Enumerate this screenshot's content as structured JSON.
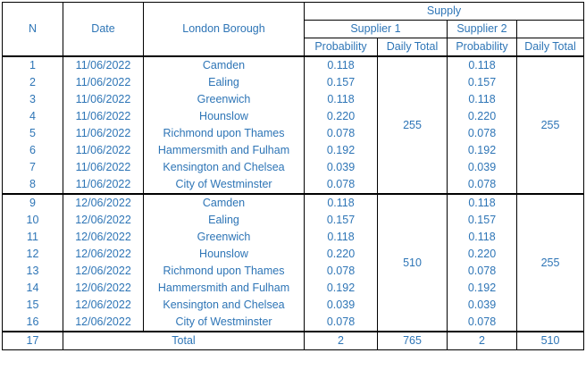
{
  "headers": {
    "n": "N",
    "date": "Date",
    "borough": "London Borough",
    "supply": "Supply",
    "supplier1": "Supplier 1",
    "supplier2": "Supplier 2",
    "probability": "Probability",
    "daily_total": "Daily Total"
  },
  "rows": [
    {
      "n": "1",
      "date": "11/06/2022",
      "borough": "Camden",
      "p1": "0.118",
      "p2": "0.118"
    },
    {
      "n": "2",
      "date": "11/06/2022",
      "borough": "Ealing",
      "p1": "0.157",
      "p2": "0.157"
    },
    {
      "n": "3",
      "date": "11/06/2022",
      "borough": "Greenwich",
      "p1": "0.118",
      "p2": "0.118"
    },
    {
      "n": "4",
      "date": "11/06/2022",
      "borough": "Hounslow",
      "p1": "0.220",
      "p2": "0.220"
    },
    {
      "n": "5",
      "date": "11/06/2022",
      "borough": "Richmond upon Thames",
      "p1": "0.078",
      "p2": "0.078"
    },
    {
      "n": "6",
      "date": "11/06/2022",
      "borough": "Hammersmith and Fulham",
      "p1": "0.192",
      "p2": "0.192"
    },
    {
      "n": "7",
      "date": "11/06/2022",
      "borough": "Kensington and Chelsea",
      "p1": "0.039",
      "p2": "0.039"
    },
    {
      "n": "8",
      "date": "11/06/2022",
      "borough": "City of Westminster",
      "p1": "0.078",
      "p2": "0.078"
    },
    {
      "n": "9",
      "date": "12/06/2022",
      "borough": "Camden",
      "p1": "0.118",
      "p2": "0.118"
    },
    {
      "n": "10",
      "date": "12/06/2022",
      "borough": "Ealing",
      "p1": "0.157",
      "p2": "0.157"
    },
    {
      "n": "11",
      "date": "12/06/2022",
      "borough": "Greenwich",
      "p1": "0.118",
      "p2": "0.118"
    },
    {
      "n": "12",
      "date": "12/06/2022",
      "borough": "Hounslow",
      "p1": "0.220",
      "p2": "0.220"
    },
    {
      "n": "13",
      "date": "12/06/2022",
      "borough": "Richmond upon Thames",
      "p1": "0.078",
      "p2": "0.078"
    },
    {
      "n": "14",
      "date": "12/06/2022",
      "borough": "Hammersmith and Fulham",
      "p1": "0.192",
      "p2": "0.192"
    },
    {
      "n": "15",
      "date": "12/06/2022",
      "borough": "Kensington and Chelsea",
      "p1": "0.039",
      "p2": "0.039"
    },
    {
      "n": "16",
      "date": "12/06/2022",
      "borough": "City of Westminster",
      "p1": "0.078",
      "p2": "0.078"
    }
  ],
  "groups": [
    {
      "s1_total": "255",
      "s2_total": "255"
    },
    {
      "s1_total": "510",
      "s2_total": "255"
    }
  ],
  "total_row": {
    "n": "17",
    "label": "Total",
    "s1_prob": "2",
    "s1_total": "765",
    "s2_prob": "2",
    "s2_total": "510"
  },
  "colors": {
    "text": "#2e75b6",
    "border": "#000000"
  }
}
